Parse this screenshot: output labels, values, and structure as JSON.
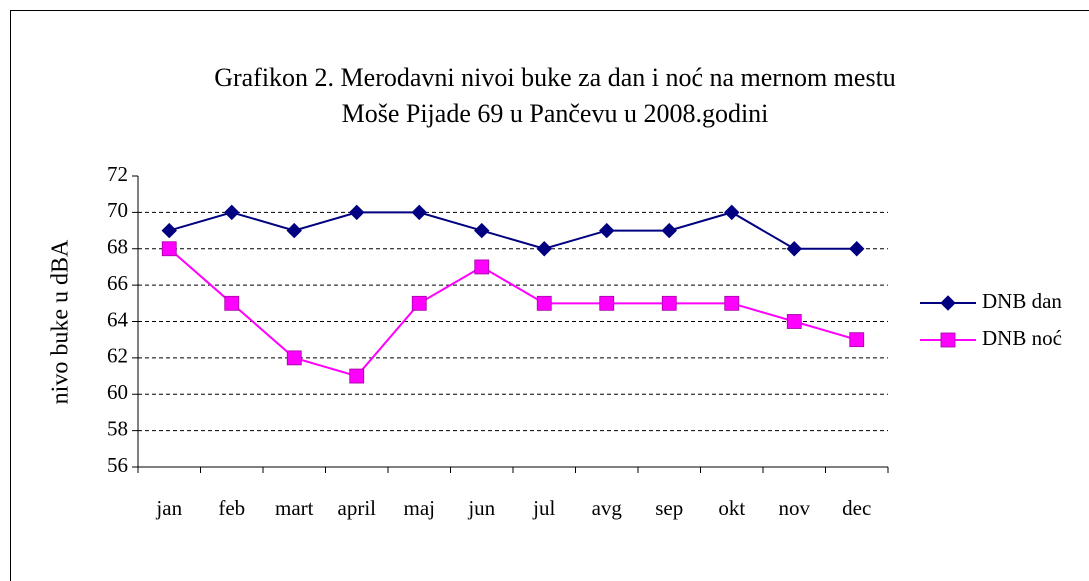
{
  "chart_data": {
    "type": "line",
    "title": [
      "Grafikon 2. Merodavni nivoi buke za dan i noć na mernom mestu",
      "Moše Pijade 69 u Pančevu u 2008.godini"
    ],
    "y_label": "nivo buke u dBA",
    "categories": [
      "jan",
      "feb",
      "mart",
      "april",
      "maj",
      "jun",
      "jul",
      "avg",
      "sep",
      "okt",
      "nov",
      "dec"
    ],
    "series": [
      {
        "name": "DNB dan",
        "color": "#000080",
        "marker": "diamond",
        "values": [
          69,
          70,
          69,
          70,
          70,
          69,
          68,
          69,
          69,
          70,
          68,
          68
        ]
      },
      {
        "name": "DNB noć",
        "color": "#ff00ff",
        "marker": "square",
        "values": [
          68,
          65,
          62,
          61,
          65,
          67,
          65,
          65,
          65,
          65,
          64,
          63
        ]
      }
    ],
    "ylim": [
      56,
      72
    ],
    "yticks": [
      56,
      58,
      60,
      62,
      64,
      66,
      68,
      70,
      72
    ],
    "grid": true,
    "legend": "right"
  }
}
